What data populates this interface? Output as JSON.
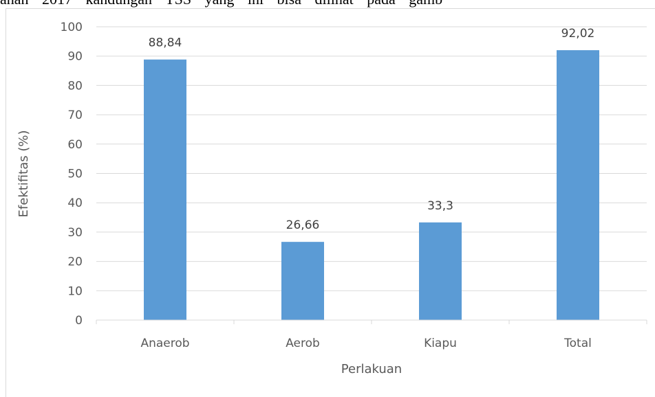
{
  "page_text": {
    "top_line": "ahan 2017 kandungan TSS yang ini bisa dilihat pada gamb"
  },
  "colors": {
    "bar": "#5b9bd5",
    "grid": "#d9d9d9",
    "tick_text": "#595959",
    "label_text": "#404040"
  },
  "chart_data": {
    "type": "bar",
    "categories": [
      "Anaerob",
      "Aerob",
      "Kiapu",
      "Total"
    ],
    "values": [
      88.84,
      26.66,
      33.3,
      92.02
    ],
    "value_labels": [
      "88,84",
      "26,66",
      "33,3",
      "92,02"
    ],
    "title": "",
    "xlabel": "Perlakuan",
    "ylabel": "Efektifitas (%)",
    "ylim": [
      0,
      100
    ],
    "yticks": [
      0,
      10,
      20,
      30,
      40,
      50,
      60,
      70,
      80,
      90,
      100
    ],
    "grid": true,
    "legend": "none"
  }
}
